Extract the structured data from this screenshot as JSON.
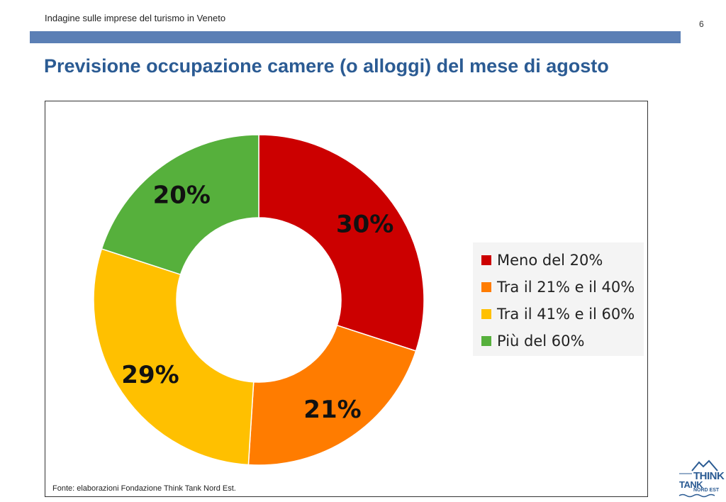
{
  "header": {
    "text": "Indagine sulle imprese del turismo in Veneto",
    "page_number": "6"
  },
  "slide_title": "Previsione occupazione camere (o alloggi) del mese di agosto",
  "chart_data": {
    "type": "pie",
    "donut": true,
    "categories": [
      "Meno del 20%",
      "Tra il 21% e il 40%",
      "Tra il 41% e il 60%",
      "Più del 60%"
    ],
    "values": [
      30,
      21,
      29,
      20
    ],
    "data_labels": [
      "30%",
      "21%",
      "29%",
      "20%"
    ],
    "colors": [
      "#cc0000",
      "#ff7c00",
      "#ffc000",
      "#56b03c"
    ],
    "legend": "right"
  },
  "source": "Fonte: elaborazioni Fondazione Think Tank Nord Est.",
  "logo": {
    "line1": "THINK",
    "line2": "TANK",
    "line3": "NORD EST"
  }
}
